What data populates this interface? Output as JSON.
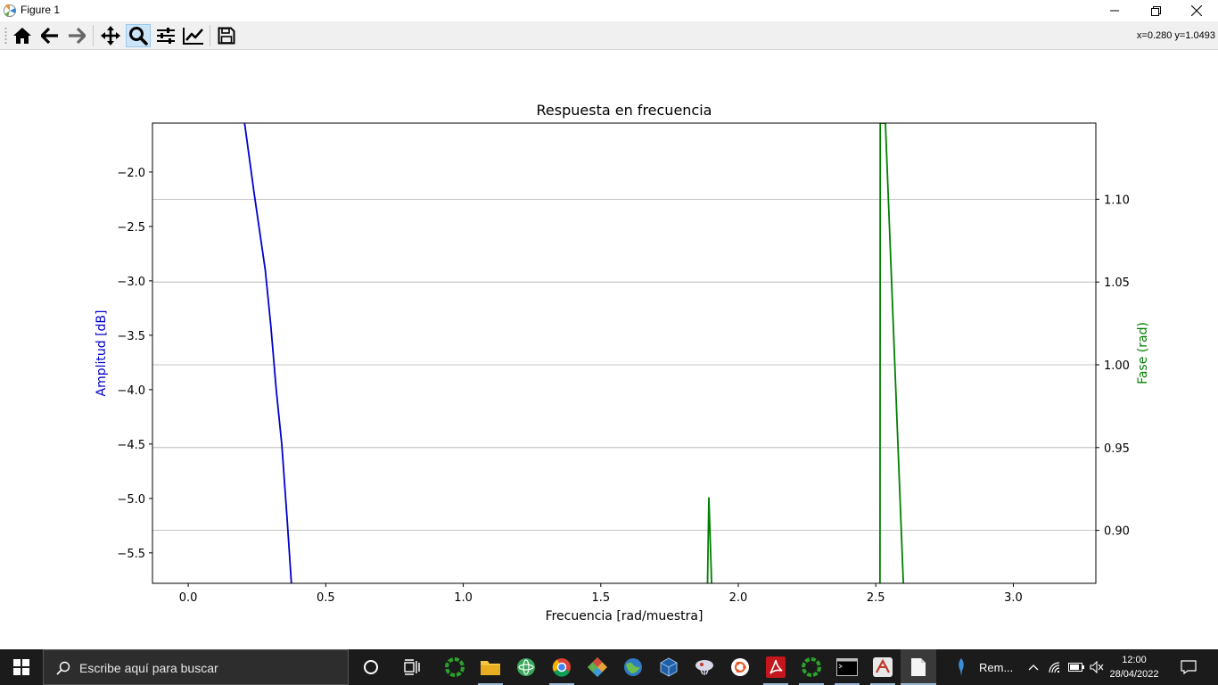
{
  "window": {
    "title": "Figure 1"
  },
  "toolbar": {
    "coords": "x=0.280 y=1.0493",
    "buttons": [
      "home-icon",
      "back-arrow-icon",
      "forward-arrow-icon",
      "pan-icon",
      "zoom-icon",
      "subplots-icon",
      "edit-curves-icon",
      "save-icon"
    ],
    "active": "zoom-icon"
  },
  "chart_data": {
    "type": "line",
    "title": "Respuesta en frecuencia",
    "xlabel": "Frecuencia [rad/muestra]",
    "ylabel": "Amplitud [dB]",
    "ylabel_right": "Fase (rad)",
    "xlim": [
      -0.13,
      3.3
    ],
    "ylim": [
      -5.78,
      -1.55
    ],
    "ylim_right": [
      0.868,
      1.146
    ],
    "xticks": [
      0.0,
      0.5,
      1.0,
      1.5,
      2.0,
      2.5,
      3.0
    ],
    "xtick_labels": [
      "0.0",
      "0.5",
      "1.0",
      "1.5",
      "2.0",
      "2.5",
      "3.0"
    ],
    "yticks": [
      -2.0,
      -2.5,
      -3.0,
      -3.5,
      -4.0,
      -4.5,
      -5.0,
      -5.5
    ],
    "ytick_labels": [
      "−2.0",
      "−2.5",
      "−3.0",
      "−3.5",
      "−4.0",
      "−4.5",
      "−5.0",
      "−5.5"
    ],
    "yticks_right": [
      1.1,
      1.05,
      1.0,
      0.95,
      0.9
    ],
    "ytick_labels_right": [
      "1.10",
      "1.05",
      "1.00",
      "0.95",
      "0.90"
    ],
    "grid": "right axis horizontal",
    "series": [
      {
        "axis": "left",
        "color": "#0000cc",
        "x": [
          0.205,
          0.24,
          0.28,
          0.3,
          0.32,
          0.34,
          0.36,
          0.375
        ],
        "y": [
          -1.55,
          -2.2,
          -2.9,
          -3.4,
          -4.0,
          -4.5,
          -5.2,
          -5.78
        ]
      },
      {
        "axis": "right",
        "color": "#008000",
        "x": [
          1.888,
          1.893,
          1.898,
          1.903,
          2.515,
          2.516,
          2.535,
          2.6
        ],
        "y": [
          0.868,
          0.92,
          0.895,
          0.868,
          0.868,
          1.146,
          1.146,
          0.868
        ],
        "segments": [
          [
            0,
            4
          ],
          [
            4,
            8
          ]
        ]
      }
    ]
  },
  "taskbar": {
    "search_placeholder": "Escribe aquí para buscar",
    "pinned": [
      "cortana-icon",
      "task-view-icon",
      "green-ring-app-icon",
      "file-explorer-icon",
      "atom-icon",
      "chrome-icon",
      "git-icon",
      "globe-app-icon",
      "virtualbox-icon",
      "windows-store-icon",
      "ubuntu-icon",
      "acrobat-icon",
      "green-ring-app-icon",
      "terminal-icon",
      "drawing-app-icon",
      "notepad-icon"
    ],
    "tray_label": "Rem...",
    "time": "12:00",
    "date": "28/04/2022"
  }
}
